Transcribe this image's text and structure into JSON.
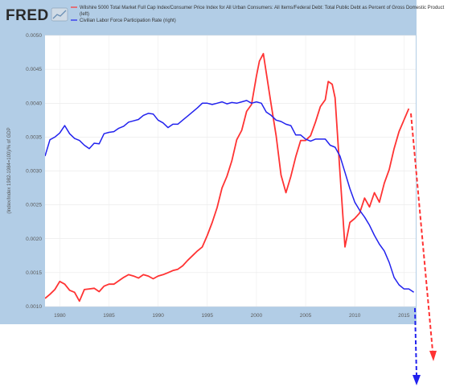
{
  "header": {
    "logo_text": "FRED",
    "logo_icon": "chart-trend-icon"
  },
  "chart_data": {
    "type": "line",
    "ylabel": "(Index/Index 1982-1984=100)/% of GDP",
    "xlim": [
      1978.5,
      2016.2
    ],
    "ylim": [
      0.001,
      0.005
    ],
    "x_ticks": [
      1980,
      1985,
      1990,
      1995,
      2000,
      2005,
      2010,
      2015
    ],
    "y_ticks": [
      "0.0010",
      "0.0015",
      "0.0020",
      "0.0025",
      "0.0030",
      "0.0035",
      "0.0040",
      "0.0045",
      "0.0050"
    ],
    "y_tick_values": [
      0.001,
      0.0015,
      0.002,
      0.0025,
      0.003,
      0.0035,
      0.004,
      0.0045,
      0.005
    ],
    "legend_position": "top",
    "grid": true,
    "series": [
      {
        "name": "Wilshire 5000 Total Market Full Cap Index/Consumer Price Index for All Urban Consumers: All Items/Federal Debt: Total Public Debt as Percent of Gross Domestic Product",
        "legend_extra": "(left)",
        "color": "#ff3333",
        "x": [
          1978.5,
          1979,
          1979.5,
          1980,
          1980.5,
          1981,
          1981.5,
          1982,
          1982.5,
          1983,
          1983.5,
          1984,
          1984.5,
          1985,
          1985.5,
          1986,
          1986.5,
          1987,
          1987.5,
          1988,
          1988.5,
          1989,
          1989.5,
          1990,
          1990.5,
          1991,
          1991.5,
          1992,
          1992.5,
          1993,
          1993.5,
          1994,
          1994.5,
          1995,
          1995.5,
          1996,
          1996.5,
          1997,
          1997.5,
          1998,
          1998.5,
          1999,
          1999.5,
          2000,
          2000.3,
          2000.7,
          2001,
          2001.5,
          2002,
          2002.5,
          2003,
          2003.5,
          2004,
          2004.5,
          2005,
          2005.5,
          2006,
          2006.5,
          2007,
          2007.3,
          2007.7,
          2008,
          2008.5,
          2009,
          2009.5,
          2010,
          2010.5,
          2011,
          2011.5,
          2012,
          2012.5,
          2013,
          2013.5,
          2014,
          2014.5,
          2015,
          2015.5
        ],
        "values": [
          0.00112,
          0.00118,
          0.00125,
          0.00137,
          0.00133,
          0.00124,
          0.00121,
          0.00108,
          0.00125,
          0.00126,
          0.00127,
          0.00122,
          0.0013,
          0.00133,
          0.00133,
          0.00138,
          0.00143,
          0.00147,
          0.00145,
          0.00142,
          0.00147,
          0.00145,
          0.00141,
          0.00145,
          0.00147,
          0.0015,
          0.00153,
          0.00155,
          0.0016,
          0.00168,
          0.00175,
          0.00182,
          0.00188,
          0.00205,
          0.00224,
          0.00246,
          0.00275,
          0.00292,
          0.00315,
          0.00346,
          0.0036,
          0.00388,
          0.00398,
          0.0044,
          0.00462,
          0.00473,
          0.00445,
          0.00398,
          0.00352,
          0.00294,
          0.00268,
          0.00292,
          0.00321,
          0.00345,
          0.00345,
          0.00352,
          0.00372,
          0.00395,
          0.00405,
          0.00432,
          0.00428,
          0.00408,
          0.00297,
          0.00188,
          0.00224,
          0.0023,
          0.00238,
          0.0026,
          0.00247,
          0.00268,
          0.00254,
          0.00282,
          0.00302,
          0.00333,
          0.00358,
          0.00375,
          0.00392
        ]
      },
      {
        "name": "Civilian Labor Force Participation Rate (right)",
        "color": "#2222ee",
        "x": [
          1978.5,
          1979,
          1979.5,
          1980,
          1980.5,
          1981,
          1981.5,
          1982,
          1982.5,
          1983,
          1983.5,
          1984,
          1984.5,
          1985,
          1985.5,
          1986,
          1986.5,
          1987,
          1987.5,
          1988,
          1988.5,
          1989,
          1989.5,
          1990,
          1990.5,
          1991,
          1991.5,
          1992,
          1992.5,
          1993,
          1993.5,
          1994,
          1994.5,
          1995,
          1995.5,
          1996,
          1996.5,
          1997,
          1997.5,
          1998,
          1998.5,
          1999,
          1999.5,
          2000,
          2000.5,
          2001,
          2001.5,
          2002,
          2002.5,
          2003,
          2003.5,
          2004,
          2004.5,
          2005,
          2005.5,
          2006,
          2006.5,
          2007,
          2007.5,
          2008,
          2008.5,
          2009,
          2009.5,
          2010,
          2010.5,
          2011,
          2011.5,
          2012,
          2012.5,
          2013,
          2013.5,
          2014,
          2014.5,
          2015,
          2015.5,
          2016
        ],
        "values": [
          0.00322,
          0.00346,
          0.0035,
          0.00356,
          0.00367,
          0.00355,
          0.00348,
          0.00345,
          0.00338,
          0.00333,
          0.00341,
          0.0034,
          0.00355,
          0.00357,
          0.00358,
          0.00363,
          0.00366,
          0.00372,
          0.00374,
          0.00376,
          0.00382,
          0.00385,
          0.00384,
          0.00375,
          0.00371,
          0.00364,
          0.00369,
          0.00369,
          0.00375,
          0.00381,
          0.00387,
          0.00393,
          0.004,
          0.004,
          0.00398,
          0.004,
          0.00402,
          0.00399,
          0.00401,
          0.004,
          0.00402,
          0.00404,
          0.004,
          0.00402,
          0.004,
          0.00387,
          0.00382,
          0.00375,
          0.00373,
          0.00369,
          0.00367,
          0.00353,
          0.00353,
          0.00347,
          0.00344,
          0.00347,
          0.00347,
          0.00347,
          0.00338,
          0.00335,
          0.00322,
          0.00298,
          0.00274,
          0.00254,
          0.00242,
          0.00232,
          0.0022,
          0.00205,
          0.00192,
          0.00182,
          0.00165,
          0.00143,
          0.00132,
          0.00126,
          0.00126,
          0.00121
        ]
      }
    ],
    "annotations": [
      {
        "name": "red-dashed-arrow",
        "color": "#ff3333"
      },
      {
        "name": "blue-dashed-arrow",
        "color": "#2222ee"
      }
    ]
  }
}
